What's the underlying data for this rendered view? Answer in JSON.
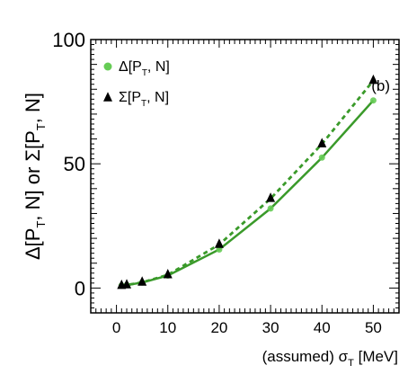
{
  "chart_data": {
    "type": "scatter",
    "panel_label": "(b)",
    "xlabel": {
      "main": "(assumed) σ",
      "sub": "T",
      "tail": " [MeV]"
    },
    "ylabel": "Δ[P_T, N]  or  Σ[P_T, N]",
    "xlim": [
      -5,
      55
    ],
    "ylim": [
      -10,
      100
    ],
    "x_ticks": [
      0,
      10,
      20,
      30,
      40,
      50
    ],
    "y_ticks": [
      0,
      50,
      100
    ],
    "grid": false,
    "legend_position": "top-left",
    "series": [
      {
        "name": "Δ[P_T, N]",
        "marker": "circle",
        "color": "#66cc55",
        "line": "solid",
        "line_color": "#3a9a2a",
        "x": [
          1,
          2,
          5,
          10,
          20,
          30,
          40,
          50
        ],
        "y": [
          1.0,
          1.2,
          2.2,
          5.0,
          15.5,
          32.0,
          52.5,
          75.5
        ]
      },
      {
        "name": "Σ[P_T, N]",
        "marker": "triangle",
        "color": "#000000",
        "line": "dashed",
        "line_color": "#3a9a2a",
        "x": [
          1,
          2,
          5,
          10,
          20,
          30,
          40,
          50
        ],
        "y": [
          1.0,
          1.2,
          2.3,
          5.3,
          17.5,
          36.0,
          58.0,
          83.5
        ]
      }
    ]
  }
}
